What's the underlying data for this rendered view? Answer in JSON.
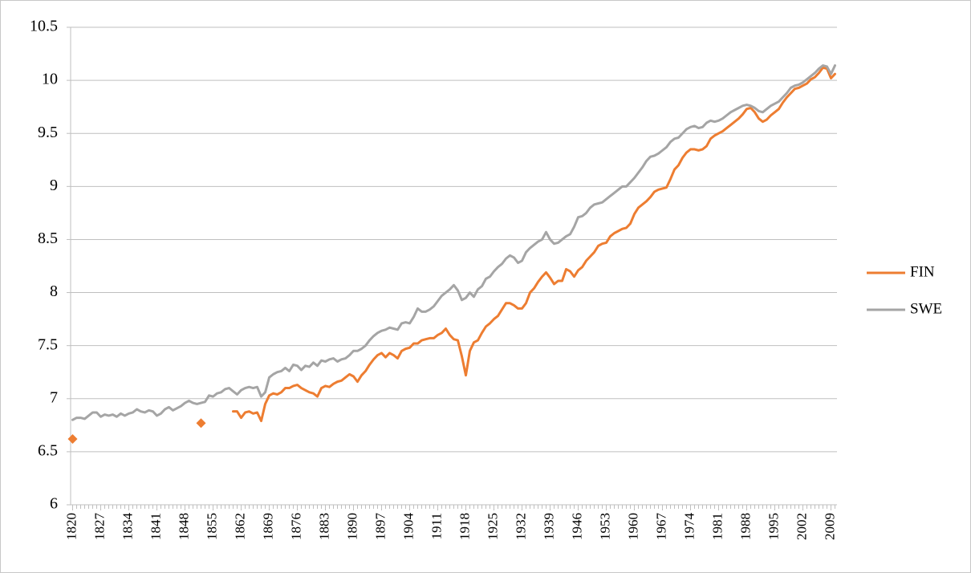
{
  "chart_data": {
    "type": "line",
    "x": [
      1820,
      1821,
      1822,
      1823,
      1824,
      1825,
      1826,
      1827,
      1828,
      1829,
      1830,
      1831,
      1832,
      1833,
      1834,
      1835,
      1836,
      1837,
      1838,
      1839,
      1840,
      1841,
      1842,
      1843,
      1844,
      1845,
      1846,
      1847,
      1848,
      1849,
      1850,
      1851,
      1852,
      1853,
      1854,
      1855,
      1856,
      1857,
      1858,
      1859,
      1860,
      1861,
      1862,
      1863,
      1864,
      1865,
      1866,
      1867,
      1868,
      1869,
      1870,
      1871,
      1872,
      1873,
      1874,
      1875,
      1876,
      1877,
      1878,
      1879,
      1880,
      1881,
      1882,
      1883,
      1884,
      1885,
      1886,
      1887,
      1888,
      1889,
      1890,
      1891,
      1892,
      1893,
      1894,
      1895,
      1896,
      1897,
      1898,
      1899,
      1900,
      1901,
      1902,
      1903,
      1904,
      1905,
      1906,
      1907,
      1908,
      1909,
      1910,
      1911,
      1912,
      1913,
      1914,
      1915,
      1916,
      1917,
      1918,
      1919,
      1920,
      1921,
      1922,
      1923,
      1924,
      1925,
      1926,
      1927,
      1928,
      1929,
      1930,
      1931,
      1932,
      1933,
      1934,
      1935,
      1936,
      1937,
      1938,
      1939,
      1940,
      1941,
      1942,
      1943,
      1944,
      1945,
      1946,
      1947,
      1948,
      1949,
      1950,
      1951,
      1952,
      1953,
      1954,
      1955,
      1956,
      1957,
      1958,
      1959,
      1960,
      1961,
      1962,
      1963,
      1964,
      1965,
      1966,
      1967,
      1968,
      1969,
      1970,
      1971,
      1972,
      1973,
      1974,
      1975,
      1976,
      1977,
      1978,
      1979,
      1980,
      1981,
      1982,
      1983,
      1984,
      1985,
      1986,
      1987,
      1988,
      1989,
      1990,
      1991,
      1992,
      1993,
      1994,
      1995,
      1996,
      1997,
      1998,
      1999,
      2000,
      2001,
      2002,
      2003,
      2004,
      2005,
      2006,
      2007,
      2008,
      2009,
      2010
    ],
    "series": [
      {
        "name": "FIN",
        "color": "#ed7d31",
        "values": [
          6.62,
          null,
          null,
          null,
          null,
          null,
          null,
          null,
          null,
          null,
          null,
          null,
          null,
          null,
          null,
          null,
          null,
          null,
          null,
          null,
          null,
          null,
          null,
          null,
          null,
          null,
          null,
          null,
          null,
          null,
          null,
          null,
          6.77,
          null,
          null,
          null,
          null,
          null,
          null,
          null,
          6.88,
          6.88,
          6.82,
          6.87,
          6.88,
          6.86,
          6.87,
          6.79,
          6.95,
          7.03,
          7.05,
          7.04,
          7.06,
          7.1,
          7.1,
          7.12,
          7.13,
          7.1,
          7.08,
          7.06,
          7.05,
          7.02,
          7.1,
          7.12,
          7.11,
          7.14,
          7.16,
          7.17,
          7.2,
          7.23,
          7.21,
          7.16,
          7.22,
          7.26,
          7.32,
          7.37,
          7.41,
          7.43,
          7.39,
          7.43,
          7.41,
          7.38,
          7.45,
          7.47,
          7.48,
          7.52,
          7.52,
          7.55,
          7.56,
          7.57,
          7.57,
          7.6,
          7.62,
          7.66,
          7.6,
          7.56,
          7.55,
          7.4,
          7.22,
          7.45,
          7.53,
          7.55,
          7.62,
          7.68,
          7.71,
          7.75,
          7.78,
          7.84,
          7.9,
          7.9,
          7.88,
          7.85,
          7.85,
          7.9,
          8.0,
          8.04,
          8.1,
          8.15,
          8.19,
          8.14,
          8.08,
          8.11,
          8.11,
          8.22,
          8.2,
          8.15,
          8.21,
          8.24,
          8.3,
          8.34,
          8.38,
          8.44,
          8.46,
          8.47,
          8.53,
          8.56,
          8.58,
          8.6,
          8.61,
          8.65,
          8.74,
          8.8,
          8.83,
          8.86,
          8.9,
          8.95,
          8.97,
          8.98,
          8.99,
          9.07,
          9.16,
          9.2,
          9.27,
          9.32,
          9.35,
          9.35,
          9.34,
          9.35,
          9.38,
          9.45,
          9.48,
          9.5,
          9.52,
          9.55,
          9.58,
          9.61,
          9.64,
          9.68,
          9.73,
          9.74,
          9.7,
          9.64,
          9.61,
          9.63,
          9.67,
          9.7,
          9.73,
          9.79,
          9.84,
          9.88,
          9.92,
          9.93,
          9.95,
          9.97,
          10.01,
          10.03,
          10.07,
          10.12,
          10.11,
          10.02,
          10.06
        ]
      },
      {
        "name": "SWE",
        "color": "#a5a5a5",
        "values": [
          6.8,
          6.82,
          6.82,
          6.81,
          6.84,
          6.87,
          6.87,
          6.83,
          6.85,
          6.84,
          6.85,
          6.83,
          6.86,
          6.84,
          6.86,
          6.87,
          6.9,
          6.88,
          6.87,
          6.89,
          6.88,
          6.84,
          6.86,
          6.9,
          6.92,
          6.89,
          6.91,
          6.93,
          6.96,
          6.98,
          6.96,
          6.95,
          6.96,
          6.97,
          7.03,
          7.02,
          7.05,
          7.06,
          7.09,
          7.1,
          7.07,
          7.04,
          7.08,
          7.1,
          7.11,
          7.1,
          7.11,
          7.02,
          7.06,
          7.2,
          7.23,
          7.25,
          7.26,
          7.29,
          7.26,
          7.32,
          7.31,
          7.27,
          7.31,
          7.3,
          7.34,
          7.31,
          7.36,
          7.35,
          7.37,
          7.38,
          7.35,
          7.37,
          7.38,
          7.41,
          7.45,
          7.45,
          7.47,
          7.5,
          7.55,
          7.59,
          7.62,
          7.64,
          7.65,
          7.67,
          7.66,
          7.65,
          7.71,
          7.72,
          7.71,
          7.77,
          7.85,
          7.82,
          7.82,
          7.84,
          7.87,
          7.92,
          7.97,
          8.0,
          8.03,
          8.07,
          8.02,
          7.93,
          7.95,
          8.0,
          7.96,
          8.03,
          8.06,
          8.13,
          8.15,
          8.2,
          8.24,
          8.27,
          8.32,
          8.35,
          8.33,
          8.28,
          8.3,
          8.38,
          8.42,
          8.45,
          8.48,
          8.5,
          8.57,
          8.5,
          8.46,
          8.47,
          8.5,
          8.53,
          8.55,
          8.62,
          8.71,
          8.72,
          8.75,
          8.8,
          8.83,
          8.84,
          8.85,
          8.88,
          8.91,
          8.94,
          8.97,
          9.0,
          9.0,
          9.04,
          9.08,
          9.13,
          9.18,
          9.24,
          9.28,
          9.29,
          9.31,
          9.34,
          9.37,
          9.42,
          9.45,
          9.46,
          9.5,
          9.54,
          9.56,
          9.57,
          9.55,
          9.56,
          9.6,
          9.62,
          9.61,
          9.62,
          9.64,
          9.67,
          9.7,
          9.72,
          9.74,
          9.76,
          9.77,
          9.76,
          9.74,
          9.71,
          9.7,
          9.73,
          9.76,
          9.78,
          9.8,
          9.84,
          9.88,
          9.93,
          9.95,
          9.96,
          9.98,
          10.01,
          10.04,
          10.07,
          10.11,
          10.14,
          10.13,
          10.06,
          10.14
        ]
      }
    ],
    "xlim": [
      1819.5,
      2010.5
    ],
    "xticks": [
      1820,
      1827,
      1834,
      1841,
      1848,
      1855,
      1862,
      1869,
      1876,
      1883,
      1890,
      1897,
      1904,
      1911,
      1918,
      1925,
      1932,
      1939,
      1946,
      1953,
      1960,
      1967,
      1974,
      1981,
      1988,
      1995,
      2002,
      2009
    ],
    "ylim": [
      6,
      10.5
    ],
    "yticks": [
      6,
      6.5,
      7,
      7.5,
      8,
      8.5,
      9,
      9.5,
      10,
      10.5
    ],
    "grid": true,
    "legend": "right"
  }
}
